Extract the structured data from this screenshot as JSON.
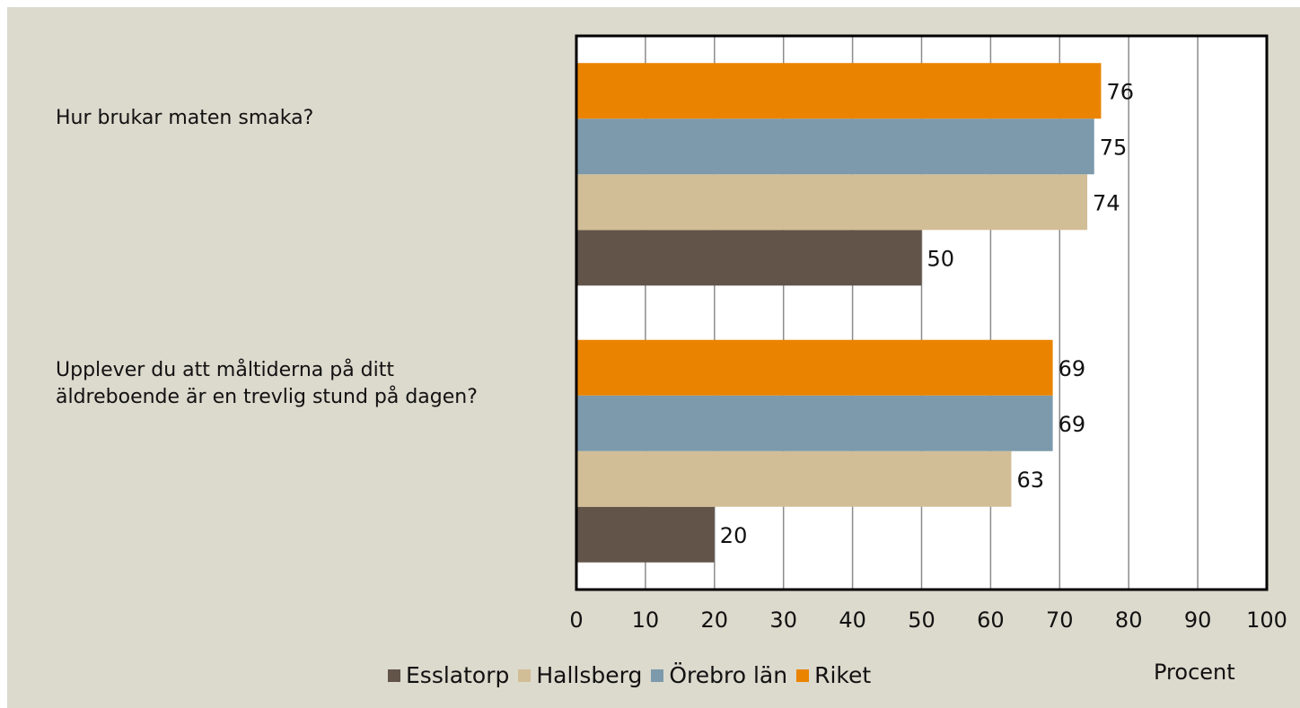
{
  "chart_data": {
    "type": "bar",
    "orientation": "horizontal",
    "categories": [
      "Hur brukar maten smaka?",
      "Upplever du att måltiderna på ditt äldreboende är en trevlig stund på dagen?"
    ],
    "series": [
      {
        "name": "Esslatorp",
        "color": "#625449",
        "values": [
          50,
          20
        ]
      },
      {
        "name": "Hallsberg",
        "color": "#d2be96",
        "values": [
          74,
          63
        ]
      },
      {
        "name": "Örebro län",
        "color": "#7c9aab",
        "values": [
          75,
          69
        ]
      },
      {
        "name": "Riket",
        "color": "#ea8400",
        "values": [
          76,
          69
        ]
      }
    ],
    "xlim": [
      0,
      100
    ],
    "xticks": [
      0,
      10,
      20,
      30,
      40,
      50,
      60,
      70,
      80,
      90,
      100
    ],
    "xlabel": "Procent",
    "grid": true,
    "legend": "bottom",
    "data_labels": true
  }
}
